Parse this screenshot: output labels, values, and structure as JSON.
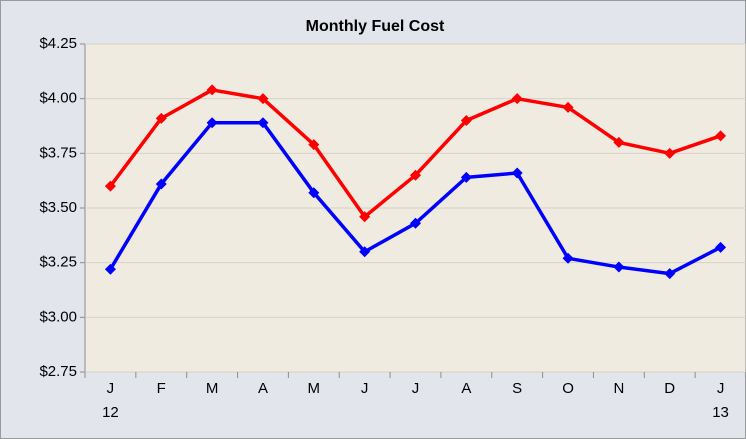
{
  "chart_data": {
    "type": "line",
    "title": "Monthly Fuel Cost",
    "categories": [
      [
        "J",
        "12"
      ],
      [
        "F"
      ],
      [
        "M"
      ],
      [
        "A"
      ],
      [
        "M"
      ],
      [
        "J"
      ],
      [
        "J"
      ],
      [
        "A"
      ],
      [
        "S"
      ],
      [
        "O"
      ],
      [
        "N"
      ],
      [
        "D"
      ],
      [
        "J",
        "13"
      ]
    ],
    "series": [
      {
        "color": "#ff0000",
        "values": [
          3.6,
          3.91,
          4.04,
          4.0,
          3.79,
          3.46,
          3.65,
          3.9,
          4.0,
          3.96,
          3.8,
          3.75,
          3.83
        ]
      },
      {
        "color": "#0000ff",
        "values": [
          3.22,
          3.61,
          3.89,
          3.89,
          3.57,
          3.3,
          3.43,
          3.64,
          3.66,
          3.27,
          3.23,
          3.2,
          3.32
        ]
      }
    ],
    "ylim": [
      2.75,
      4.25
    ],
    "yticks": [
      {
        "value": 2.75,
        "label": "$2.75"
      },
      {
        "value": 3,
        "label": "$3.00"
      },
      {
        "value": 3.25,
        "label": "$3.25"
      },
      {
        "value": 3.5,
        "label": "$3.50"
      },
      {
        "value": 3.75,
        "label": "$3.75"
      },
      {
        "value": 4,
        "label": "$4.00"
      },
      {
        "value": 4.25,
        "label": "$4.25"
      }
    ],
    "grid": true
  }
}
